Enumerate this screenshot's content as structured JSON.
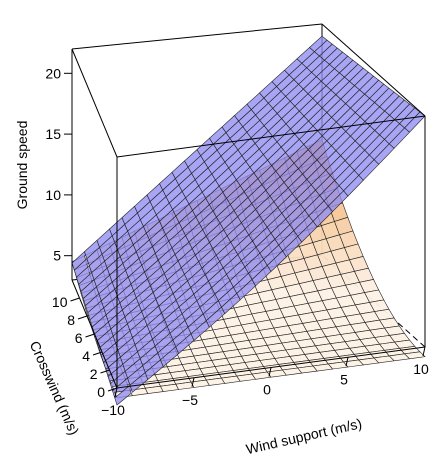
{
  "chart_data": {
    "type": "surface3d",
    "title": "",
    "xlabel": "Wind support (m/s)",
    "ylabel": "Crosswind (m/s)",
    "zlabel": "Ground speed",
    "xlim": [
      -10,
      10
    ],
    "ylim": [
      0,
      12
    ],
    "zlim": [
      3,
      22
    ],
    "x_ticks": [
      -10,
      -5,
      0,
      5,
      10
    ],
    "y_ticks": [
      0,
      2,
      4,
      6,
      8,
      10
    ],
    "z_ticks": [
      5,
      10,
      15,
      20
    ],
    "grid": true,
    "series": [
      {
        "surface": "purple",
        "color": "#8a86f0",
        "corners": {
          "x_min_y_min": 1.6,
          "x_max_y_min": 22,
          "x_min_y_max": 4.4,
          "x_max_y_max": 21
        },
        "profile_y0": [
          {
            "x": -10,
            "z": 1.6
          },
          {
            "x": -5,
            "z": 5.5
          },
          {
            "x": 0,
            "z": 10.2
          },
          {
            "x": 5,
            "z": 15.5
          },
          {
            "x": 10,
            "z": 22
          }
        ]
      },
      {
        "surface": "orange",
        "color": "#f0a050",
        "corners": {
          "x_min_y_min": 2.2,
          "x_max_y_min": 2.2,
          "x_min_y_max": 4.5,
          "x_max_y_max": 12.5
        },
        "profile_y_max": [
          {
            "x": -10,
            "z": 4.5
          },
          {
            "x": -5,
            "z": 5.8
          },
          {
            "x": 0,
            "z": 7.5
          },
          {
            "x": 5,
            "z": 9.8
          },
          {
            "x": 10,
            "z": 12.5
          }
        ]
      }
    ]
  }
}
